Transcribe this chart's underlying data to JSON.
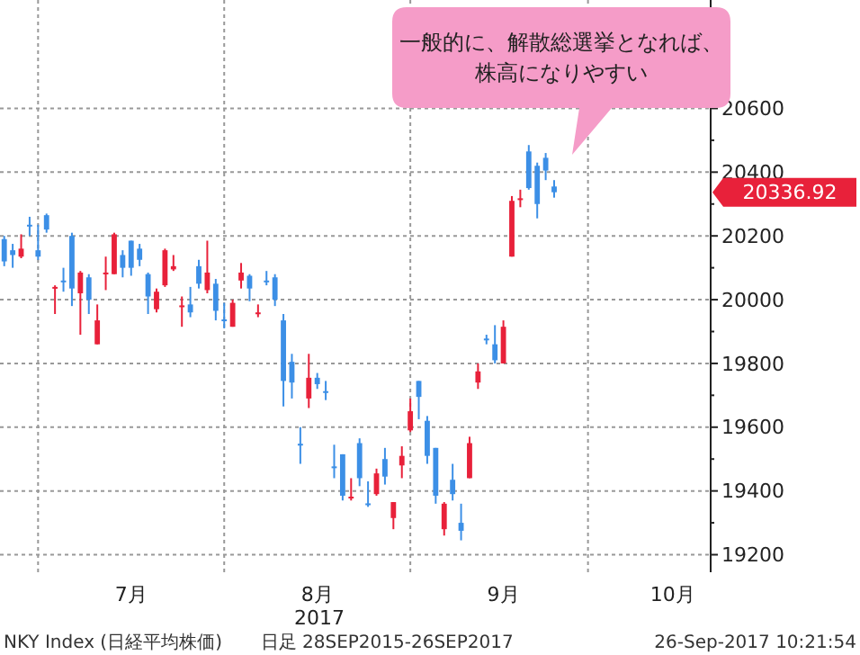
{
  "chart_data": {
    "type": "candlestick",
    "xlabel": "2017",
    "categories": [
      null,
      null,
      null,
      null,
      null,
      null,
      null,
      null,
      null,
      null,
      null,
      null,
      null,
      null,
      null,
      "7月",
      null,
      null,
      null,
      null,
      null,
      null,
      null,
      null,
      null,
      null,
      null,
      null,
      null,
      null,
      null,
      null,
      null,
      null,
      null,
      null,
      null,
      "8月",
      null,
      null,
      null,
      null,
      null,
      null,
      null,
      null,
      null,
      null,
      null,
      null,
      null,
      null,
      null,
      null,
      null,
      null,
      null,
      null,
      null,
      "9月",
      null,
      null,
      null,
      null,
      null,
      null,
      null,
      null,
      null,
      null,
      null,
      null,
      null,
      null,
      null,
      null,
      null,
      null,
      null,
      "10月",
      null,
      null,
      null,
      null
    ],
    "ohlc": [
      [
        20190,
        20200,
        20105,
        20120
      ],
      [
        20155,
        20175,
        20100,
        20140
      ],
      [
        20135,
        20205,
        20130,
        20160
      ],
      [
        20235,
        20260,
        20200,
        20230
      ],
      [
        20155,
        20235,
        20125,
        20135
      ],
      [
        20265,
        20270,
        20210,
        20220
      ],
      [
        20035,
        20045,
        19955,
        20040
      ],
      [
        20060,
        20100,
        20025,
        20055
      ],
      [
        20200,
        20210,
        19980,
        20035
      ],
      [
        20020,
        20090,
        19890,
        20085
      ],
      [
        20070,
        20080,
        19955,
        20000
      ],
      [
        19860,
        19985,
        19860,
        19935
      ],
      [
        20080,
        20135,
        20030,
        20085
      ],
      [
        20080,
        20210,
        20080,
        20205
      ],
      [
        20140,
        20155,
        20070,
        20100
      ],
      [
        20185,
        20185,
        20075,
        20100
      ],
      [
        20160,
        20175,
        20105,
        20125
      ],
      [
        20080,
        20085,
        19955,
        20010
      ],
      [
        19970,
        20035,
        19960,
        20025
      ],
      [
        20045,
        20160,
        20040,
        20155
      ],
      [
        20095,
        20140,
        20090,
        20105
      ],
      [
        19978,
        20010,
        19915,
        19982
      ],
      [
        19985,
        20040,
        19945,
        19960
      ],
      [
        20105,
        20125,
        20035,
        20050
      ],
      [
        20030,
        20185,
        20020,
        20085
      ],
      [
        20050,
        20065,
        19935,
        19965
      ],
      [
        19938,
        19990,
        19910,
        19934
      ],
      [
        19915,
        20000,
        19915,
        19990
      ],
      [
        20060,
        20115,
        20035,
        20085
      ],
      [
        20075,
        20080,
        19995,
        20035
      ],
      [
        19955,
        19985,
        19945,
        19960
      ],
      [
        20060,
        20090,
        20045,
        20055
      ],
      [
        20070,
        20080,
        19980,
        20000
      ],
      [
        19935,
        19955,
        19665,
        19745
      ],
      [
        19805,
        19830,
        19690,
        19740
      ],
      [
        19548,
        19600,
        19485,
        19544
      ],
      [
        19690,
        19830,
        19660,
        19755
      ],
      [
        19755,
        19770,
        19720,
        19735
      ],
      [
        19713,
        19745,
        19685,
        19709
      ],
      [
        19477,
        19545,
        19440,
        19473
      ],
      [
        19515,
        19515,
        19370,
        19385
      ],
      [
        19378,
        19440,
        19370,
        19382
      ],
      [
        19550,
        19565,
        19415,
        19440
      ],
      [
        19361,
        19430,
        19350,
        19357
      ],
      [
        19390,
        19470,
        19385,
        19455
      ],
      [
        19500,
        19535,
        19420,
        19445
      ],
      [
        19315,
        19365,
        19280,
        19365
      ],
      [
        19480,
        19540,
        19440,
        19510
      ],
      [
        19590,
        19690,
        19585,
        19650
      ],
      [
        19745,
        19745,
        19625,
        19695
      ],
      [
        19620,
        19635,
        19485,
        19510
      ],
      [
        19535,
        19535,
        19360,
        19385
      ],
      [
        19280,
        19365,
        19260,
        19360
      ],
      [
        19435,
        19485,
        19370,
        19390
      ],
      [
        19300,
        19360,
        19245,
        19275
      ],
      [
        19440,
        19570,
        19440,
        19550
      ],
      [
        19740,
        19800,
        19720,
        19775
      ],
      [
        19878,
        19890,
        19860,
        19874
      ],
      [
        19860,
        19920,
        19800,
        19810
      ],
      [
        19800,
        19935,
        19800,
        19915
      ],
      [
        20135,
        20325,
        20135,
        20310
      ],
      [
        20313,
        20345,
        20290,
        20318
      ],
      [
        20465,
        20485,
        20345,
        20350
      ],
      [
        20420,
        20430,
        20255,
        20300
      ],
      [
        20445,
        20460,
        20375,
        20405
      ],
      [
        20355,
        20375,
        20320,
        20336.92
      ],
      null,
      null,
      null,
      null,
      null,
      null,
      null,
      null,
      null,
      null,
      null,
      null,
      null,
      null,
      null,
      null,
      null,
      null
    ],
    "colors": [
      "#3c8fe6",
      "#3c8fe6",
      "#e8213a",
      "#3c8fe6",
      "#3c8fe6",
      "#3c8fe6",
      "#e8213a",
      "#3c8fe6",
      "#3c8fe6",
      "#e8213a",
      "#3c8fe6",
      "#e8213a",
      "#e8213a",
      "#e8213a",
      "#3c8fe6",
      "#3c8fe6",
      "#3c8fe6",
      "#3c8fe6",
      "#e8213a",
      "#e8213a",
      "#e8213a",
      "#e8213a",
      "#3c8fe6",
      "#3c8fe6",
      "#e8213a",
      "#3c8fe6",
      "#3c8fe6",
      "#e8213a",
      "#e8213a",
      "#3c8fe6",
      "#e8213a",
      "#3c8fe6",
      "#3c8fe6",
      "#3c8fe6",
      "#3c8fe6",
      "#3c8fe6",
      "#e8213a",
      "#3c8fe6",
      "#3c8fe6",
      "#3c8fe6",
      "#3c8fe6",
      "#e8213a",
      "#3c8fe6",
      "#3c8fe6",
      "#e8213a",
      "#3c8fe6",
      "#e8213a",
      "#e8213a",
      "#e8213a",
      "#3c8fe6",
      "#3c8fe6",
      "#3c8fe6",
      "#e8213a",
      "#3c8fe6",
      "#3c8fe6",
      "#e8213a",
      "#e8213a",
      "#3c8fe6",
      "#3c8fe6",
      "#e8213a",
      "#e8213a",
      "#e8213a",
      "#3c8fe6",
      "#3c8fe6",
      "#3c8fe6",
      "#3c8fe6",
      null,
      null,
      null,
      null,
      null,
      null,
      null,
      null,
      null,
      null,
      null,
      null,
      null,
      null,
      null,
      null,
      null,
      null
    ],
    "ylim": [
      19145,
      20940
    ],
    "yticks": [
      19200,
      {
        "value": 19300,
        "label": null
      },
      19400,
      {
        "value": 19500,
        "label": null
      },
      19600,
      {
        "value": 19700,
        "label": null
      },
      19800,
      {
        "value": 19900,
        "label": null
      },
      20000,
      {
        "value": 20100,
        "label": null
      },
      20200,
      {
        "value": 20300,
        "label": null
      },
      20400,
      {
        "value": 20500,
        "label": null
      },
      20600,
      {
        "value": 20700,
        "label": null
      },
      {
        "value": 20800,
        "label": null
      },
      {
        "value": 20900,
        "label": null
      }
    ],
    "grid": true,
    "annotations": [
      "一般的に、解散総選挙となれば、株高になりやすい",
      "20336.92",
      "NKY Index (日経平均株価)",
      "日足 28SEP2015-26SEP2017",
      "26-Sep-2017 10:21:54"
    ]
  }
}
